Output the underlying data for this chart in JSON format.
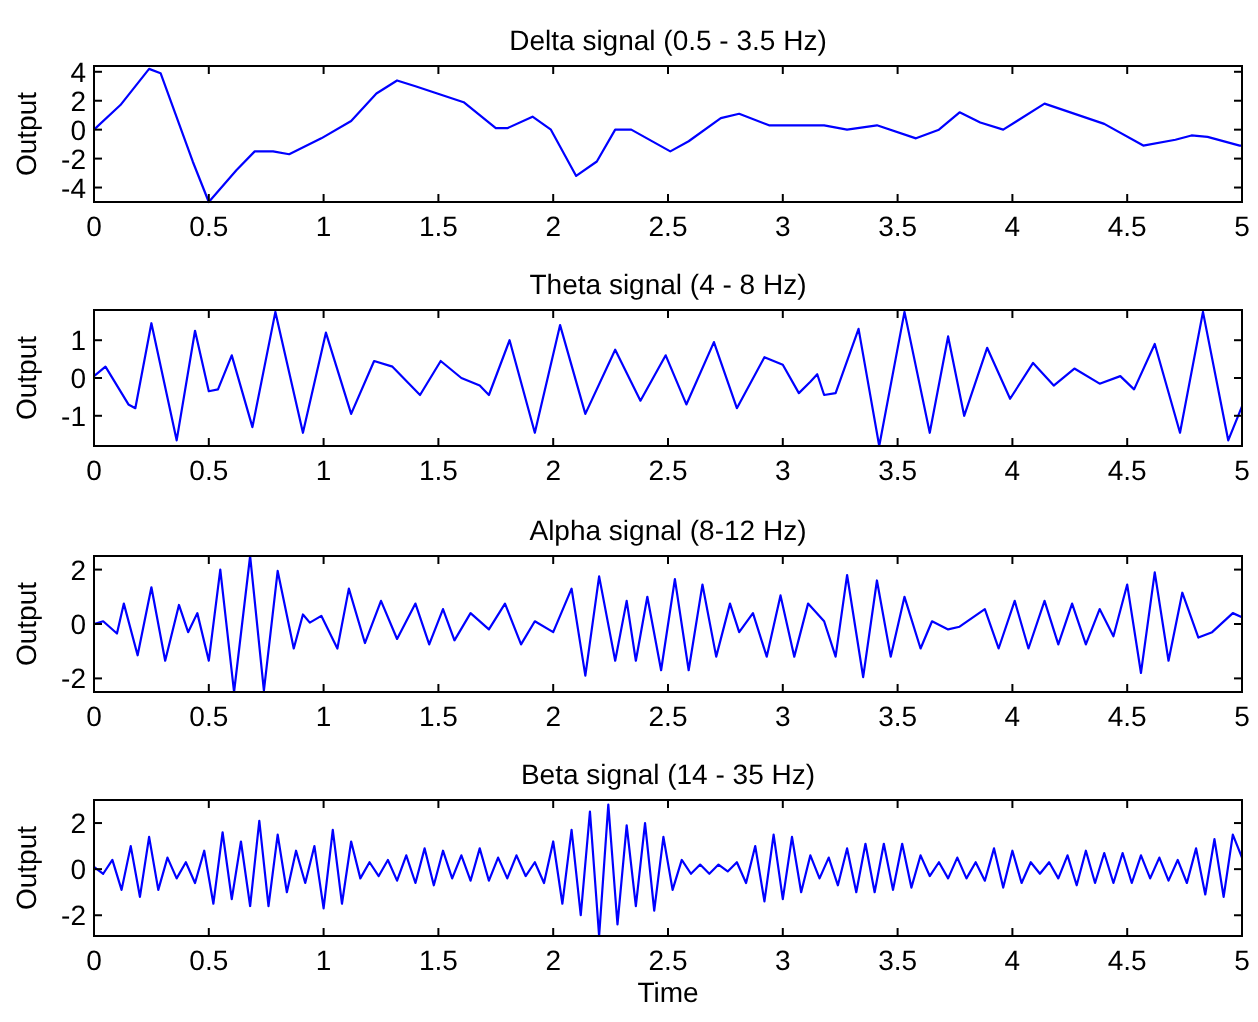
{
  "chart_data": [
    {
      "type": "line",
      "title": "Delta signal (0.5 - 3.5 Hz)",
      "ylabel": "Output",
      "xlim": [
        0,
        5
      ],
      "xticks": [
        0,
        0.5,
        1,
        1.5,
        2,
        2.5,
        3,
        3.5,
        4,
        4.5,
        5
      ],
      "ylim": [
        -5,
        4.4
      ],
      "yticks": [
        -4,
        -2,
        0,
        2,
        4
      ],
      "series": [
        {
          "color": "#0000ff",
          "x": [
            0,
            0.115,
            0.24,
            0.29,
            0.43,
            0.5,
            0.62,
            0.7,
            0.78,
            0.85,
            0.99,
            1.12,
            1.23,
            1.32,
            1.4,
            1.61,
            1.75,
            1.8,
            1.91,
            1.99,
            2.1,
            2.19,
            2.27,
            2.34,
            2.51,
            2.59,
            2.73,
            2.81,
            2.94,
            3.18,
            3.28,
            3.41,
            3.58,
            3.68,
            3.77,
            3.86,
            3.96,
            4.14,
            4.4,
            4.57,
            4.71,
            4.78,
            4.85,
            4.99,
            5
          ],
          "values": [
            0,
            1.7,
            4.2,
            3.9,
            -2.2,
            -5,
            -2.8,
            -1.5,
            -1.5,
            -1.7,
            -0.6,
            0.6,
            2.5,
            3.4,
            3,
            1.9,
            0.1,
            0.1,
            0.9,
            0,
            -3.2,
            -2.2,
            0,
            0,
            -1.5,
            -0.8,
            0.8,
            1.1,
            0.3,
            0.3,
            0,
            0.3,
            -0.6,
            0,
            1.2,
            0.5,
            0,
            1.8,
            0.4,
            -1.1,
            -0.7,
            -0.4,
            -0.5,
            -1.1,
            -1.1
          ]
        }
      ]
    },
    {
      "type": "line",
      "title": "Theta signal (4 - 8 Hz)",
      "ylabel": "Output",
      "xlim": [
        0,
        5
      ],
      "xticks": [
        0,
        0.5,
        1,
        1.5,
        2,
        2.5,
        3,
        3.5,
        4,
        4.5,
        5
      ],
      "ylim": [
        -1.8,
        1.8
      ],
      "yticks": [
        -1,
        0,
        1
      ],
      "series": [
        {
          "color": "#0000ff",
          "x": [
            0,
            0.05,
            0.15,
            0.18,
            0.25,
            0.36,
            0.44,
            0.5,
            0.54,
            0.6,
            0.69,
            0.79,
            0.91,
            1.01,
            1.12,
            1.22,
            1.3,
            1.42,
            1.51,
            1.6,
            1.68,
            1.72,
            1.81,
            1.92,
            2.03,
            2.14,
            2.27,
            2.38,
            2.49,
            2.58,
            2.7,
            2.8,
            2.92,
            3,
            3.07,
            3.12,
            3.15,
            3.18,
            3.23,
            3.33,
            3.42,
            3.53,
            3.64,
            3.72,
            3.79,
            3.89,
            3.99,
            4.09,
            4.18,
            4.27,
            4.38,
            4.47,
            4.53,
            4.62,
            4.73,
            4.83,
            4.94,
            5
          ],
          "values": [
            0.05,
            0.3,
            -0.7,
            -0.8,
            1.45,
            -1.65,
            1.25,
            -0.35,
            -0.3,
            0.6,
            -1.3,
            1.75,
            -1.45,
            1.2,
            -0.95,
            0.45,
            0.3,
            -0.45,
            0.45,
            0,
            -0.2,
            -0.45,
            1,
            -1.45,
            1.4,
            -0.95,
            0.75,
            -0.6,
            0.6,
            -0.7,
            0.95,
            -0.8,
            0.55,
            0.35,
            -0.4,
            -0.1,
            0.1,
            -0.45,
            -0.4,
            1.3,
            -1.8,
            1.75,
            -1.45,
            1.1,
            -1,
            0.8,
            -0.55,
            0.4,
            -0.2,
            0.25,
            -0.15,
            0.05,
            -0.3,
            0.9,
            -1.45,
            1.75,
            -1.65,
            -0.75
          ]
        }
      ]
    },
    {
      "type": "line",
      "title": "Alpha signal (8-12 Hz)",
      "ylabel": "Output",
      "xlim": [
        0,
        5
      ],
      "xticks": [
        0,
        0.5,
        1,
        1.5,
        2,
        2.5,
        3,
        3.5,
        4,
        4.5,
        5
      ],
      "ylim": [
        -2.5,
        2.5
      ],
      "yticks": [
        -2,
        0,
        2
      ],
      "series": [
        {
          "color": "#0000ff",
          "x": [
            0,
            0.04,
            0.1,
            0.13,
            0.19,
            0.25,
            0.31,
            0.37,
            0.41,
            0.45,
            0.5,
            0.55,
            0.61,
            0.68,
            0.74,
            0.8,
            0.87,
            0.91,
            0.94,
            0.99,
            1.06,
            1.11,
            1.18,
            1.25,
            1.32,
            1.4,
            1.46,
            1.52,
            1.57,
            1.64,
            1.72,
            1.79,
            1.86,
            1.92,
            2,
            2.08,
            2.14,
            2.2,
            2.27,
            2.32,
            2.36,
            2.41,
            2.47,
            2.53,
            2.59,
            2.65,
            2.71,
            2.77,
            2.81,
            2.87,
            2.93,
            2.99,
            3.05,
            3.11,
            3.18,
            3.23,
            3.28,
            3.35,
            3.41,
            3.47,
            3.53,
            3.6,
            3.65,
            3.72,
            3.77,
            3.88,
            3.94,
            4.01,
            4.07,
            4.14,
            4.2,
            4.26,
            4.32,
            4.38,
            4.44,
            4.5,
            4.56,
            4.62,
            4.68,
            4.74,
            4.81,
            4.87,
            4.96,
            5
          ],
          "values": [
            0,
            0.1,
            -0.35,
            0.75,
            -1.15,
            1.35,
            -1.35,
            0.7,
            -0.3,
            0.4,
            -1.35,
            2,
            -2.5,
            2.5,
            -2.45,
            1.95,
            -0.9,
            0.35,
            0.05,
            0.3,
            -0.9,
            1.3,
            -0.7,
            0.85,
            -0.55,
            0.75,
            -0.75,
            0.55,
            -0.6,
            0.4,
            -0.2,
            0.75,
            -0.75,
            0.1,
            -0.3,
            1.3,
            -1.9,
            1.75,
            -1.35,
            0.85,
            -1.35,
            1,
            -1.7,
            1.65,
            -1.7,
            1.45,
            -1.2,
            0.75,
            -0.3,
            0.4,
            -1.2,
            1.05,
            -1.2,
            0.75,
            0.1,
            -1.2,
            1.8,
            -1.95,
            1.6,
            -1.2,
            1,
            -0.9,
            0.1,
            -0.2,
            -0.1,
            0.55,
            -0.9,
            0.85,
            -0.9,
            0.85,
            -0.75,
            0.75,
            -0.75,
            0.55,
            -0.45,
            1.45,
            -1.8,
            1.9,
            -1.35,
            1.15,
            -0.5,
            -0.3,
            0.4,
            0.25
          ]
        }
      ]
    },
    {
      "type": "line",
      "title": "Beta signal  (14 - 35 Hz)",
      "xlabel": "Time",
      "ylabel": "Output",
      "xlim": [
        0,
        5
      ],
      "xticks": [
        0,
        0.5,
        1,
        1.5,
        2,
        2.5,
        3,
        3.5,
        4,
        4.5,
        5
      ],
      "ylim": [
        -2.9,
        3
      ],
      "yticks": [
        -2,
        0,
        2
      ],
      "series": [
        {
          "color": "#0000ff",
          "x": [
            0,
            0.04,
            0.08,
            0.12,
            0.16,
            0.2,
            0.24,
            0.28,
            0.32,
            0.36,
            0.4,
            0.44,
            0.48,
            0.52,
            0.56,
            0.6,
            0.64,
            0.68,
            0.72,
            0.76,
            0.8,
            0.84,
            0.88,
            0.92,
            0.96,
            1,
            1.04,
            1.08,
            1.12,
            1.16,
            1.2,
            1.24,
            1.28,
            1.32,
            1.36,
            1.4,
            1.44,
            1.48,
            1.52,
            1.56,
            1.6,
            1.64,
            1.68,
            1.72,
            1.76,
            1.8,
            1.84,
            1.88,
            1.92,
            1.96,
            2,
            2.04,
            2.08,
            2.12,
            2.16,
            2.2,
            2.24,
            2.28,
            2.32,
            2.36,
            2.4,
            2.44,
            2.48,
            2.52,
            2.56,
            2.6,
            2.64,
            2.68,
            2.72,
            2.76,
            2.8,
            2.84,
            2.88,
            2.92,
            2.96,
            3,
            3.04,
            3.08,
            3.12,
            3.16,
            3.2,
            3.24,
            3.28,
            3.32,
            3.36,
            3.4,
            3.44,
            3.48,
            3.52,
            3.56,
            3.6,
            3.64,
            3.68,
            3.72,
            3.76,
            3.8,
            3.84,
            3.88,
            3.92,
            3.96,
            4,
            4.04,
            4.08,
            4.12,
            4.16,
            4.2,
            4.24,
            4.28,
            4.32,
            4.36,
            4.4,
            4.44,
            4.48,
            4.52,
            4.56,
            4.6,
            4.64,
            4.68,
            4.72,
            4.76,
            4.8,
            4.84,
            4.88,
            4.92,
            4.96,
            5
          ],
          "values": [
            0.1,
            -0.2,
            0.4,
            -0.9,
            1,
            -1.2,
            1.4,
            -0.9,
            0.5,
            -0.4,
            0.3,
            -0.6,
            0.8,
            -1.5,
            1.6,
            -1.3,
            1.2,
            -1.6,
            2.1,
            -1.6,
            1.5,
            -1,
            0.8,
            -0.6,
            1,
            -1.7,
            1.7,
            -1.5,
            1.2,
            -0.4,
            0.3,
            -0.3,
            0.4,
            -0.5,
            0.6,
            -0.6,
            0.9,
            -0.7,
            0.8,
            -0.4,
            0.6,
            -0.5,
            0.9,
            -0.5,
            0.5,
            -0.4,
            0.6,
            -0.3,
            0.3,
            -0.6,
            1.2,
            -1.5,
            1.7,
            -2,
            2.5,
            -2.9,
            2.8,
            -2.4,
            1.9,
            -1.6,
            2,
            -1.8,
            1.4,
            -0.9,
            0.4,
            -0.2,
            0.2,
            -0.2,
            0.2,
            -0.1,
            0.3,
            -0.6,
            1,
            -1.4,
            1.5,
            -1.3,
            1.4,
            -1,
            0.6,
            -0.4,
            0.5,
            -0.7,
            0.9,
            -1,
            1.1,
            -1,
            1.1,
            -0.9,
            1.1,
            -0.8,
            0.6,
            -0.3,
            0.3,
            -0.4,
            0.5,
            -0.4,
            0.3,
            -0.5,
            0.9,
            -0.8,
            0.8,
            -0.6,
            0.3,
            -0.2,
            0.3,
            -0.4,
            0.6,
            -0.7,
            0.8,
            -0.6,
            0.7,
            -0.6,
            0.7,
            -0.6,
            0.6,
            -0.4,
            0.5,
            -0.5,
            0.4,
            -0.6,
            0.9,
            -1.1,
            1.3,
            -1.2,
            1.5,
            0.5
          ]
        }
      ]
    }
  ]
}
